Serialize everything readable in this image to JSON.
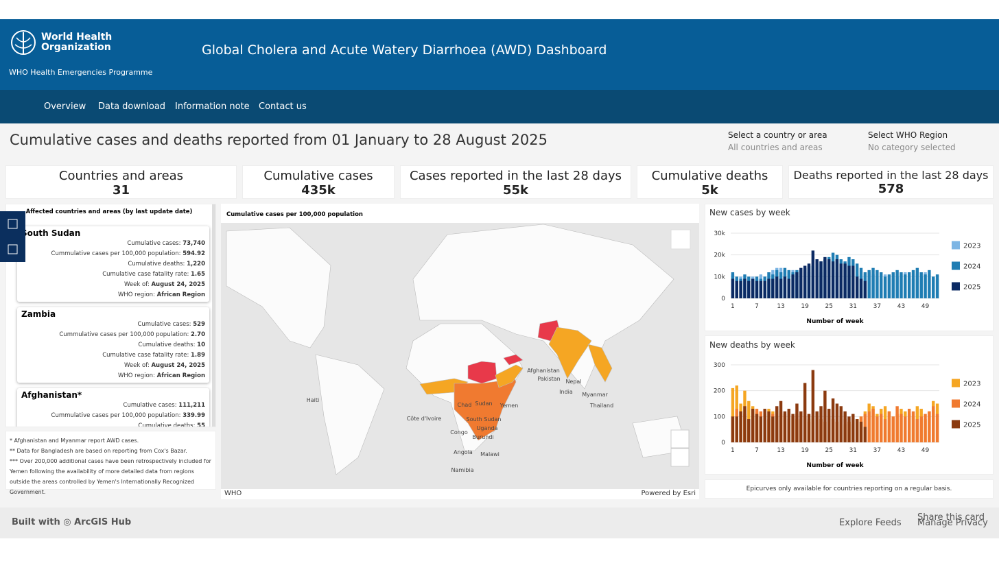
{
  "header": {
    "logo_line1": "World Health",
    "logo_line2": "Organization",
    "programme": "WHO Health Emergencies Programme",
    "title": "Global Cholera and Acute Watery Diarrhoea (AWD) Dashboard"
  },
  "nav": [
    "Overview",
    "Data download",
    "Information note",
    "Contact us"
  ],
  "page_title": "Cumulative cases and deaths reported from 01 January to 28 August 2025",
  "filters": [
    {
      "label": "Select a country or area",
      "value": "All countries and areas"
    },
    {
      "label": "Select WHO Region",
      "value": "No category selected"
    }
  ],
  "stats": [
    {
      "label": "Countries and areas",
      "value": "31"
    },
    {
      "label": "Cumulative cases",
      "value": "435k"
    },
    {
      "label": "Cases reported in the last 28 days",
      "value": "55k"
    },
    {
      "label": "Cumulative deaths",
      "value": "5k"
    },
    {
      "label": "Deaths reported in the last 28 days",
      "value": "578"
    }
  ],
  "country_list": {
    "title": "Affected countries and areas (by last update date)",
    "cards": [
      {
        "name": "South Sudan",
        "rows": [
          {
            "label": "Cumulative cases:",
            "value": "73,740"
          },
          {
            "label": "Cummulative cases per 100,000 population:",
            "value": "594.92"
          },
          {
            "label": "Cumulative deaths:",
            "value": "1,220"
          },
          {
            "label": "Cumulative case fatality rate:",
            "value": "1.65"
          },
          {
            "label": "Week of:",
            "value": "August 24, 2025"
          },
          {
            "label": "WHO region:",
            "value": "African Region"
          }
        ]
      },
      {
        "name": "Zambia",
        "rows": [
          {
            "label": "Cumulative cases:",
            "value": "529"
          },
          {
            "label": "Cummulative cases per 100,000 population:",
            "value": "2.70"
          },
          {
            "label": "Cumulative deaths:",
            "value": "10"
          },
          {
            "label": "Cumulative case fatality rate:",
            "value": "1.89"
          },
          {
            "label": "Week of:",
            "value": "August 24, 2025"
          },
          {
            "label": "WHO region:",
            "value": "African Region"
          }
        ]
      },
      {
        "name": "Afghanistan*",
        "rows": [
          {
            "label": "Cumulative cases:",
            "value": "111,211"
          },
          {
            "label": "Cummulative cases per 100,000 population:",
            "value": "339.99"
          },
          {
            "label": "Cumulative deaths:",
            "value": "55"
          }
        ]
      }
    ]
  },
  "footnotes": [
    "* Afghanistan and Myanmar report AWD cases.",
    "** Data for Bangladesh are based on reporting from Cox's Bazar.",
    "*** Over 200,000 additional cases have been retrospectively included for Yemen following the availability of more detailed data from regions outside the areas controlled by Yemen's Internationally Recognized Government."
  ],
  "map": {
    "title": "Cumulative cases per 100,000 population",
    "labels": [
      "Haiti",
      "Chad",
      "Sudan",
      "Yemen",
      "Côte d'Ivoire",
      "South Sudan",
      "Congo",
      "Uganda",
      "Burundi",
      "Angola",
      "Malawi",
      "Namibia",
      "Afghanistan",
      "Pakistan",
      "Nepal",
      "India",
      "Myanmar",
      "Thailand"
    ],
    "attribution_left": "WHO",
    "attribution_right": "Powered by Esri"
  },
  "chart_data": [
    {
      "type": "bar",
      "title": "New cases by week",
      "x_label": "Number of week",
      "x": [
        1,
        2,
        3,
        4,
        5,
        6,
        7,
        8,
        9,
        10,
        11,
        12,
        13,
        14,
        15,
        16,
        17,
        18,
        19,
        20,
        21,
        22,
        23,
        24,
        25,
        26,
        27,
        28,
        29,
        30,
        31,
        32,
        33,
        34,
        35,
        36,
        37,
        38,
        39,
        40,
        41,
        42,
        43,
        44,
        45,
        46,
        47,
        48,
        49,
        50,
        51,
        52
      ],
      "xlim": [
        0.5,
        52.5
      ],
      "xticks": [
        1,
        7,
        13,
        19,
        25,
        31,
        37,
        43,
        49
      ],
      "ylim": [
        0,
        30000
      ],
      "yticks": [
        0,
        {
          "value": 10000,
          "label": "10k"
        },
        {
          "value": 20000,
          "label": "20k"
        },
        {
          "value": 30000,
          "label": "30k"
        }
      ],
      "grid": true,
      "series": [
        {
          "name": "2023",
          "color": "#7cb5e4",
          "values": [
            11000,
            9000,
            10000,
            9000,
            8000,
            10000,
            9000,
            11000,
            10000,
            12000,
            13000,
            14000,
            14000,
            13000,
            12000,
            13000,
            12000,
            11000,
            12000,
            12000,
            13000,
            12000,
            12000,
            13000,
            14000,
            13000,
            12000,
            12000,
            13000,
            11000,
            12000,
            11000,
            10000,
            11000,
            12000,
            11000,
            10000,
            9000,
            11000,
            10000,
            9000,
            10000,
            11000,
            12000,
            10000,
            9000,
            11000,
            10000,
            12000,
            11000,
            10000,
            9000
          ]
        },
        {
          "name": "2024",
          "color": "#1f7db3",
          "values": [
            12000,
            10000,
            9000,
            11000,
            10000,
            9000,
            10000,
            9000,
            10000,
            12000,
            11000,
            13000,
            12000,
            14000,
            13000,
            12000,
            13000,
            13000,
            14000,
            15000,
            15000,
            16000,
            17000,
            18000,
            19000,
            21000,
            20000,
            18000,
            17000,
            19000,
            18000,
            16000,
            14000,
            12000,
            13000,
            14000,
            13000,
            12000,
            10000,
            11000,
            12000,
            13000,
            12000,
            11000,
            12000,
            13000,
            14000,
            12000,
            11000,
            13000,
            10000,
            11000
          ]
        },
        {
          "name": "2025",
          "color": "#0b2a63",
          "values": [
            9000,
            8000,
            8000,
            9000,
            8000,
            9000,
            8000,
            8000,
            8000,
            9000,
            9000,
            10000,
            9000,
            10000,
            9000,
            11000,
            12000,
            14000,
            15000,
            16000,
            22000,
            18000,
            17000,
            19000,
            18000,
            17000,
            18000,
            16000,
            16000,
            15000,
            15000,
            10000,
            9000,
            8000,
            null,
            null,
            null,
            null,
            null,
            null,
            null,
            null,
            null,
            null,
            null,
            null,
            null,
            null,
            null,
            null,
            null,
            null
          ]
        }
      ]
    },
    {
      "type": "bar",
      "title": "New deaths by week",
      "x_label": "Number of week",
      "x": [
        1,
        2,
        3,
        4,
        5,
        6,
        7,
        8,
        9,
        10,
        11,
        12,
        13,
        14,
        15,
        16,
        17,
        18,
        19,
        20,
        21,
        22,
        23,
        24,
        25,
        26,
        27,
        28,
        29,
        30,
        31,
        32,
        33,
        34,
        35,
        36,
        37,
        38,
        39,
        40,
        41,
        42,
        43,
        44,
        45,
        46,
        47,
        48,
        49,
        50,
        51,
        52
      ],
      "xlim": [
        0.5,
        52.5
      ],
      "xticks": [
        1,
        7,
        13,
        19,
        25,
        31,
        37,
        43,
        49
      ],
      "ylim": [
        0,
        300
      ],
      "yticks": [
        0,
        100,
        200,
        300
      ],
      "grid": true,
      "series": [
        {
          "name": "2023",
          "color": "#f5a623",
          "values": [
            210,
            220,
            150,
            200,
            160,
            140,
            120,
            100,
            110,
            130,
            120,
            100,
            110,
            100,
            90,
            100,
            90,
            80,
            100,
            90,
            100,
            80,
            90,
            80,
            100,
            90,
            80,
            90,
            70,
            80,
            70,
            90,
            100,
            120,
            150,
            140,
            110,
            130,
            140,
            120,
            100,
            110,
            130,
            120,
            110,
            100,
            140,
            130,
            90,
            120,
            160,
            150
          ]
        },
        {
          "name": "2024",
          "color": "#f07a30",
          "values": [
            100,
            130,
            120,
            110,
            90,
            100,
            130,
            120,
            100,
            90,
            110,
            100,
            120,
            110,
            90,
            100,
            110,
            90,
            100,
            80,
            90,
            100,
            90,
            80,
            100,
            90,
            80,
            100,
            90,
            80,
            70,
            90,
            100,
            110,
            120,
            130,
            100,
            110,
            90,
            120,
            100,
            140,
            110,
            100,
            130,
            120,
            90,
            100,
            110,
            120,
            140,
            110
          ]
        },
        {
          "name": "2025",
          "color": "#8b3a0f",
          "values": [
            100,
            100,
            120,
            140,
            90,
            130,
            110,
            100,
            130,
            120,
            100,
            140,
            160,
            120,
            130,
            110,
            150,
            120,
            230,
            110,
            280,
            120,
            140,
            200,
            130,
            170,
            150,
            140,
            120,
            100,
            110,
            90,
            80,
            60,
            null,
            null,
            null,
            null,
            null,
            null,
            null,
            null,
            null,
            null,
            null,
            null,
            null,
            null,
            null,
            null,
            null,
            null
          ]
        }
      ]
    }
  ],
  "chart_note": "Epicurves only available for countries reporting on a regular basis.",
  "footer": {
    "built_with": "Built with",
    "hub": "ArcGIS Hub",
    "explore": "Explore Feeds",
    "share": "Share this card",
    "privacy": "Manage Privacy"
  }
}
